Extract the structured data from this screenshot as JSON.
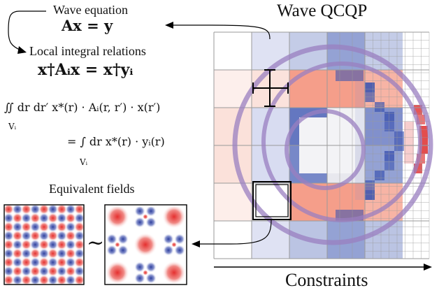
{
  "title": "Wave QCQP",
  "left": {
    "wave_equation_label": "Wave equation",
    "wave_equation": "Ax = y",
    "local_relations_label": "Local integral relations",
    "local_relation": "x†Aᵢx = x†yᵢ",
    "integral_lhs": "∬ dr dr′ x*(r) · Aᵢ(r, r′) · x(r′)",
    "integral_lhs_domain": "Vᵢ",
    "integral_rhs": "= ∫ dr x*(r) · yᵢ(r)",
    "integral_rhs_domain": "Vᵢ",
    "equivalent_fields_label": "Equivalent fields",
    "tilde": "~"
  },
  "right": {
    "xaxis_label": "Constraints"
  },
  "colors": {
    "red": "#e03a3a",
    "blue": "#3d55b0",
    "purple": "#9a7fc0",
    "grid": "#9a9a9a"
  }
}
